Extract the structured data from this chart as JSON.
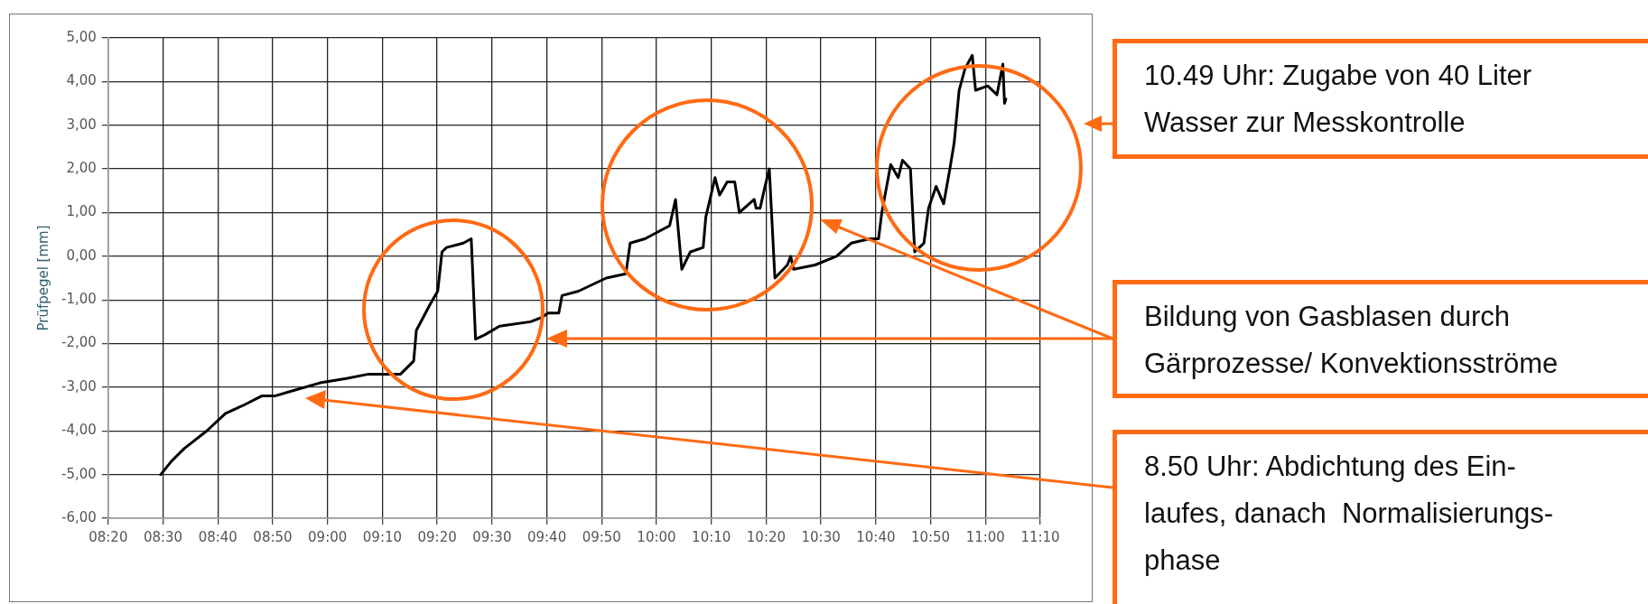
{
  "chart_data": {
    "type": "line",
    "ylabel": "Prüfpegel [mm]",
    "x": [
      8.493,
      8.525,
      8.565,
      8.633,
      8.69,
      8.748,
      8.8,
      8.84,
      8.885,
      8.977,
      9.057,
      9.125,
      9.222,
      9.262,
      9.27,
      9.312,
      9.335,
      9.348,
      9.362,
      9.413,
      9.437,
      9.45,
      9.478,
      9.523,
      9.617,
      9.652,
      9.67,
      9.703,
      9.713,
      9.763,
      9.847,
      9.907,
      9.92,
      9.965,
      10.04,
      10.058,
      10.077,
      10.103,
      10.142,
      10.15,
      10.178,
      10.192,
      10.215,
      10.238,
      10.252,
      10.297,
      10.303,
      10.315,
      10.33,
      10.343,
      10.36,
      10.398,
      10.408,
      10.417,
      10.482,
      10.547,
      10.592,
      10.648,
      10.675,
      10.685,
      10.712,
      10.735,
      10.748,
      10.772,
      10.785,
      10.813,
      10.827,
      10.85,
      10.873,
      10.892,
      10.905,
      10.92,
      10.938,
      10.96,
      10.97,
      11.007,
      11.035,
      11.053,
      11.058,
      11.062
    ],
    "series": [
      {
        "color": "#000000",
        "values": [
          -5.0,
          -4.7,
          -4.4,
          -4.0,
          -3.6,
          -3.4,
          -3.2,
          -3.2,
          -3.1,
          -2.9,
          -2.8,
          -2.7,
          -2.7,
          -2.4,
          -1.7,
          -1.1,
          -0.8,
          0.1,
          0.2,
          0.3,
          0.4,
          -1.9,
          -1.8,
          -1.6,
          -1.5,
          -1.4,
          -1.3,
          -1.3,
          -0.9,
          -0.8,
          -0.5,
          -0.4,
          0.3,
          0.4,
          0.7,
          1.3,
          -0.3,
          0.1,
          0.2,
          0.9,
          1.8,
          1.4,
          1.7,
          1.7,
          1.0,
          1.3,
          1.1,
          1.1,
          1.6,
          2.0,
          -0.5,
          -0.2,
          0.0,
          -0.3,
          -0.2,
          0.0,
          0.3,
          0.4,
          0.4,
          1.0,
          2.1,
          1.8,
          2.2,
          2.0,
          0.1,
          0.3,
          1.1,
          1.6,
          1.2,
          2.0,
          2.6,
          3.8,
          4.3,
          4.6,
          3.8,
          3.9,
          3.7,
          4.4,
          3.5,
          3.6
        ]
      }
    ],
    "xlim": [
      8.3333,
      11.1667
    ],
    "xticks": [
      {
        "value": 8.3333,
        "label": "08:20"
      },
      {
        "value": 8.5,
        "label": "08:30"
      },
      {
        "value": 8.6667,
        "label": "08:40"
      },
      {
        "value": 8.8333,
        "label": "08:50"
      },
      {
        "value": 9,
        "label": "09:00"
      },
      {
        "value": 9.1667,
        "label": "09:10"
      },
      {
        "value": 9.3333,
        "label": "09:20"
      },
      {
        "value": 9.5,
        "label": "09:30"
      },
      {
        "value": 9.6667,
        "label": "09:40"
      },
      {
        "value": 9.8333,
        "label": "09:50"
      },
      {
        "value": 10,
        "label": "10:00"
      },
      {
        "value": 10.1667,
        "label": "10:10"
      },
      {
        "value": 10.3333,
        "label": "10:20"
      },
      {
        "value": 10.5,
        "label": "10:30"
      },
      {
        "value": 10.6667,
        "label": "10:40"
      },
      {
        "value": 10.8333,
        "label": "10:50"
      },
      {
        "value": 11,
        "label": "11:00"
      },
      {
        "value": 11.1667,
        "label": "11:10"
      }
    ],
    "ylim": [
      -6,
      5
    ],
    "yticks": [
      {
        "value": -6,
        "label": "-6,00"
      },
      {
        "value": -5,
        "label": "-5,00"
      },
      {
        "value": -4,
        "label": "-4,00"
      },
      {
        "value": -3,
        "label": "-3,00"
      },
      {
        "value": -2,
        "label": "-2,00"
      },
      {
        "value": -1,
        "label": "-1,00"
      },
      {
        "value": 0,
        "label": "0,00"
      },
      {
        "value": 1,
        "label": "1,00"
      },
      {
        "value": 2,
        "label": "2,00"
      },
      {
        "value": 3,
        "label": "3,00"
      },
      {
        "value": 4,
        "label": "4,00"
      },
      {
        "value": 5,
        "label": "5,00"
      }
    ],
    "grid": true,
    "legend": false,
    "marker": "none",
    "line_style": "solid",
    "annotations": [
      "10.49 Uhr: Zugabe von 40 Liter\nWasser zur Messkontrolle",
      "Bildung von Gasblasen durch\nGärprozesse/ Konvektionsströme",
      "8.50 Uhr: Abdichtung des Ein-\nlaufes, danach  Normalisierungs-\nphase"
    ]
  }
}
